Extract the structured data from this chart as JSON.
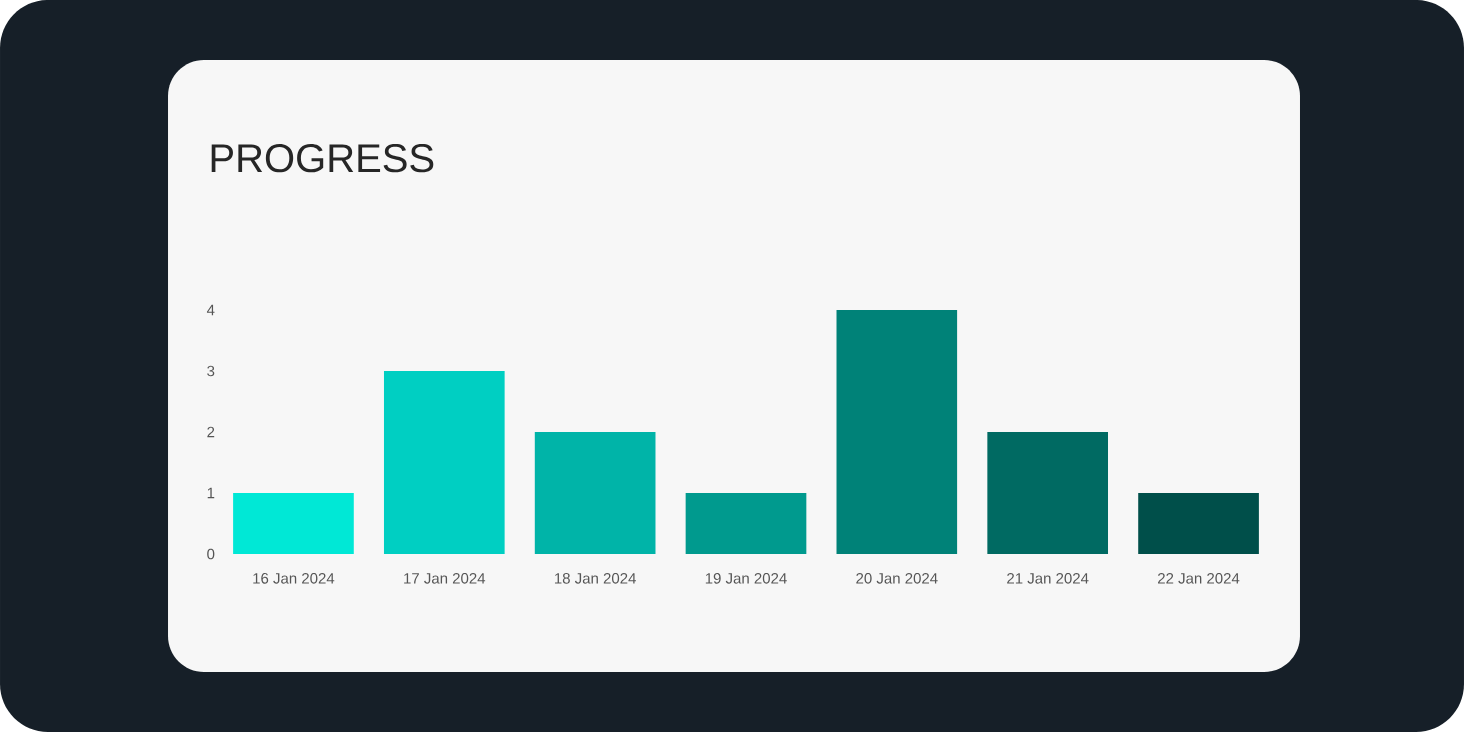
{
  "chart_data": {
    "type": "bar",
    "title": "PROGRESS",
    "categories": [
      "16 Jan 2024",
      "17 Jan 2024",
      "18 Jan 2024",
      "19 Jan 2024",
      "20 Jan 2024",
      "21 Jan 2024",
      "22 Jan 2024"
    ],
    "values": [
      1,
      3,
      2,
      1,
      4,
      2,
      1
    ],
    "colors": [
      "#00e8d6",
      "#00cfc2",
      "#00b4a8",
      "#009a8e",
      "#008278",
      "#006a62",
      "#004f4a"
    ],
    "ylim": [
      0,
      4
    ],
    "yticks": [
      0,
      1,
      2,
      3,
      4
    ]
  }
}
